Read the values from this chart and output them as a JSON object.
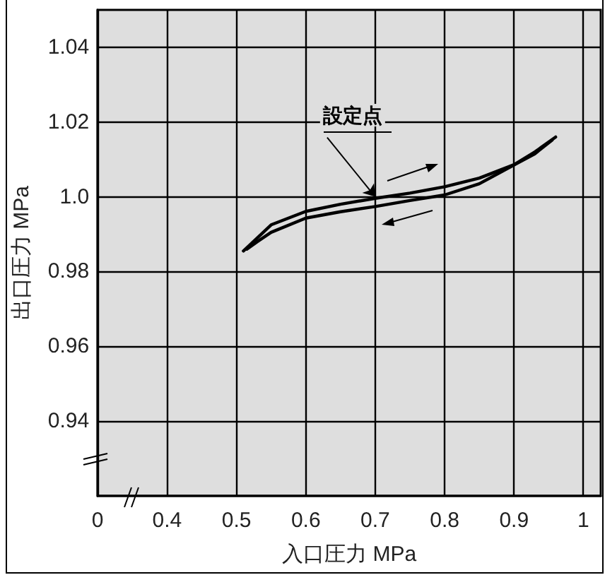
{
  "chart_data": {
    "type": "line",
    "xlabel": "入口圧力 MPa",
    "ylabel": "出口圧力 MPa",
    "xlim": [
      0.3,
      1.025
    ],
    "ylim": [
      0.92,
      1.05
    ],
    "xticks": [
      {
        "value": 0.3,
        "label": "0"
      },
      0.4,
      0.5,
      0.6,
      0.7,
      0.8,
      0.9,
      1
    ],
    "yticks": [
      0.94,
      0.96,
      0.98,
      {
        "value": 1.0,
        "label": "1.0"
      },
      1.02,
      1.04
    ],
    "grid": true,
    "marker": "none",
    "line_style": "solid",
    "annotations": [
      {
        "text": "設定点",
        "x": 0.7,
        "y": 1.0
      }
    ],
    "series": [
      {
        "color": "#000000",
        "x": [
          0.51,
          0.53,
          0.55,
          0.6,
          0.65,
          0.7,
          0.75,
          0.8,
          0.85,
          0.9,
          0.93,
          0.96
        ],
        "values": [
          0.9855,
          0.989,
          0.9925,
          0.9961,
          0.998,
          0.9996,
          1.001,
          1.0027,
          1.005,
          1.0086,
          1.012,
          1.016
        ]
      },
      {
        "color": "#000000",
        "x": [
          0.955,
          0.93,
          0.9,
          0.85,
          0.8,
          0.75,
          0.7,
          0.65,
          0.6,
          0.55,
          0.53,
          0.515
        ],
        "values": [
          1.0152,
          1.0115,
          1.0085,
          1.0035,
          1.0005,
          0.999,
          0.9974,
          0.996,
          0.9943,
          0.9905,
          0.988,
          0.986
        ]
      }
    ]
  }
}
